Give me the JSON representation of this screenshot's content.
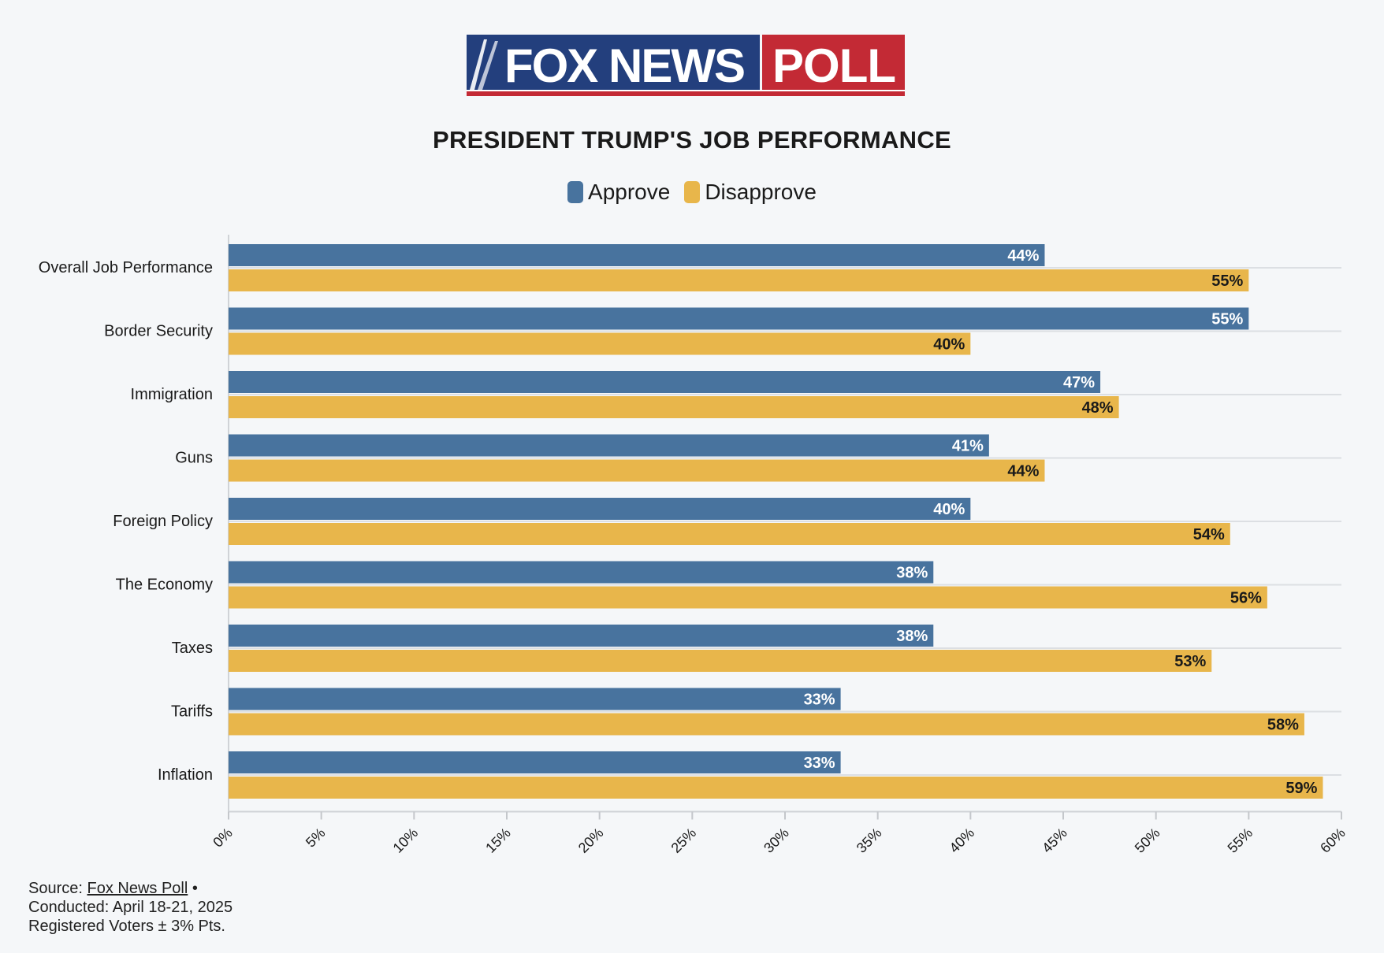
{
  "logo": {
    "brand": "FOX NEWS",
    "word": "POLL"
  },
  "chart_data": {
    "type": "bar",
    "orientation": "horizontal",
    "title": "PRESIDENT TRUMP'S JOB PERFORMANCE",
    "categories": [
      "Overall Job Performance",
      "Border Security",
      "Immigration",
      "Guns",
      "Foreign Policy",
      "The Economy",
      "Taxes",
      "Tariffs",
      "Inflation"
    ],
    "series": [
      {
        "name": "Approve",
        "color": "#48739e",
        "values": [
          44,
          55,
          47,
          41,
          40,
          38,
          38,
          33,
          33
        ]
      },
      {
        "name": "Disapprove",
        "color": "#e8b64b",
        "values": [
          55,
          40,
          48,
          44,
          54,
          56,
          53,
          58,
          59
        ]
      }
    ],
    "xlim": [
      0,
      60
    ],
    "xticks": [
      0,
      5,
      10,
      15,
      20,
      25,
      30,
      35,
      40,
      45,
      50,
      55,
      60
    ],
    "tick_suffix": "%",
    "grid": true,
    "legend": "top-center"
  },
  "footer": {
    "source_prefix": "Source: ",
    "source_link": "Fox News Poll",
    "source_suffix": " •",
    "conducted": "Conducted: April 18-21, 2025",
    "voters": "Registered Voters ± 3% Pts."
  }
}
